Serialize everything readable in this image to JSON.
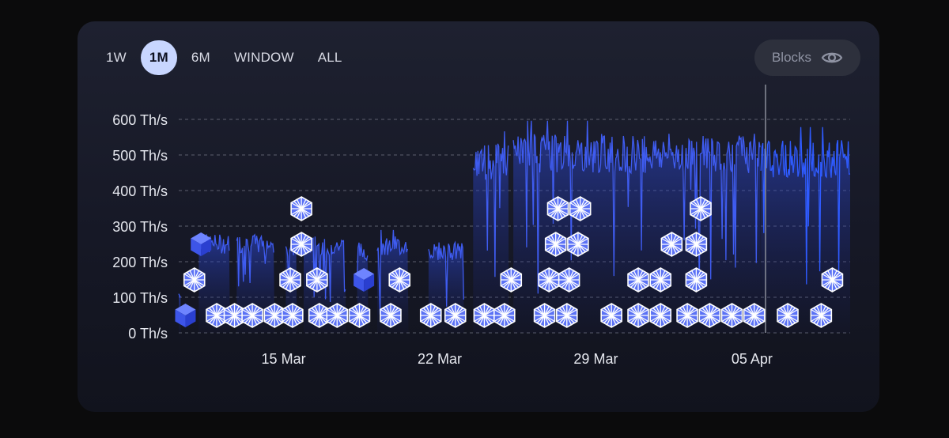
{
  "tabs": [
    {
      "label": "1W",
      "active": false
    },
    {
      "label": "1M",
      "active": true
    },
    {
      "label": "6M",
      "active": false
    },
    {
      "label": "WINDOW",
      "active": false
    },
    {
      "label": "ALL",
      "active": false
    }
  ],
  "blocks_toggle": {
    "label": "Blocks",
    "icon": "eye-icon"
  },
  "colors": {
    "line": "#3f5cf0",
    "line_bright": "#2f5bff",
    "grid": "#7a7d8c",
    "block_light": "#ffffff",
    "block_dark": "#4a64f5"
  },
  "chart_data": {
    "type": "area",
    "unit": "Th/s",
    "y_ticks": [
      "600 Th/s",
      "500 Th/s",
      "400 Th/s",
      "300 Th/s",
      "200 Th/s",
      "100 Th/s",
      "0 Th/s"
    ],
    "y_values": [
      600,
      500,
      400,
      300,
      200,
      100,
      0
    ],
    "ylim": [
      0,
      600
    ],
    "x_ticks": [
      {
        "label": "15 Mar",
        "day": 15
      },
      {
        "label": "22 Mar",
        "day": 22
      },
      {
        "label": "29 Mar",
        "day": 29
      },
      {
        "label": "05 Apr",
        "day": 36
      }
    ],
    "xlim_days": [
      10.3,
      40.4
    ],
    "segments": [
      {
        "from": 10.3,
        "to": 10.4,
        "level": 110
      },
      {
        "from": 11.2,
        "to": 12.6,
        "level": 250
      },
      {
        "from": 12.9,
        "to": 14.6,
        "level": 250
      },
      {
        "from": 15.1,
        "to": 15.6,
        "level": 240
      },
      {
        "from": 15.9,
        "to": 17.8,
        "level": 245
      },
      {
        "from": 18.3,
        "to": 18.8,
        "level": 230
      },
      {
        "from": 19.2,
        "to": 20.6,
        "level": 245
      },
      {
        "from": 21.5,
        "to": 23.1,
        "level": 230
      },
      {
        "from": 23.5,
        "to": 25.1,
        "level": 480
      },
      {
        "from": 25.3,
        "to": 36.4,
        "level": 505
      },
      {
        "from": 36.4,
        "to": 40.4,
        "level": 490
      }
    ],
    "blocks": [
      {
        "day": 10.6,
        "level": 1,
        "style": "cube"
      },
      {
        "day": 11.3,
        "level": 5,
        "style": "cube"
      },
      {
        "day": 11.0,
        "level": 3,
        "style": "star"
      },
      {
        "day": 12.0,
        "level": 1,
        "style": "star"
      },
      {
        "day": 12.8,
        "level": 1,
        "style": "star"
      },
      {
        "day": 13.6,
        "level": 1,
        "style": "star"
      },
      {
        "day": 14.6,
        "level": 1,
        "style": "star"
      },
      {
        "day": 15.4,
        "level": 1,
        "style": "star"
      },
      {
        "day": 15.3,
        "level": 3,
        "style": "star"
      },
      {
        "day": 15.8,
        "level": 5,
        "style": "star"
      },
      {
        "day": 15.8,
        "level": 7,
        "style": "star"
      },
      {
        "day": 16.6,
        "level": 1,
        "style": "star"
      },
      {
        "day": 16.5,
        "level": 3,
        "style": "star"
      },
      {
        "day": 17.4,
        "level": 1,
        "style": "star"
      },
      {
        "day": 18.4,
        "level": 1,
        "style": "star"
      },
      {
        "day": 18.6,
        "level": 3,
        "style": "cube"
      },
      {
        "day": 19.8,
        "level": 1,
        "style": "star"
      },
      {
        "day": 20.2,
        "level": 3,
        "style": "star"
      },
      {
        "day": 21.6,
        "level": 1,
        "style": "star"
      },
      {
        "day": 22.7,
        "level": 1,
        "style": "star"
      },
      {
        "day": 24.0,
        "level": 1,
        "style": "star"
      },
      {
        "day": 24.9,
        "level": 1,
        "style": "star"
      },
      {
        "day": 25.2,
        "level": 3,
        "style": "star"
      },
      {
        "day": 26.7,
        "level": 1,
        "style": "star"
      },
      {
        "day": 26.9,
        "level": 3,
        "style": "star"
      },
      {
        "day": 27.2,
        "level": 5,
        "style": "star"
      },
      {
        "day": 27.3,
        "level": 7,
        "style": "star"
      },
      {
        "day": 27.7,
        "level": 1,
        "style": "star"
      },
      {
        "day": 27.8,
        "level": 3,
        "style": "star"
      },
      {
        "day": 28.2,
        "level": 5,
        "style": "star"
      },
      {
        "day": 28.3,
        "level": 7,
        "style": "star"
      },
      {
        "day": 29.7,
        "level": 1,
        "style": "star"
      },
      {
        "day": 30.9,
        "level": 1,
        "style": "star"
      },
      {
        "day": 30.9,
        "level": 3,
        "style": "star"
      },
      {
        "day": 31.9,
        "level": 1,
        "style": "star"
      },
      {
        "day": 31.9,
        "level": 3,
        "style": "star"
      },
      {
        "day": 32.4,
        "level": 5,
        "style": "star"
      },
      {
        "day": 33.1,
        "level": 1,
        "style": "star"
      },
      {
        "day": 33.5,
        "level": 3,
        "style": "star"
      },
      {
        "day": 33.5,
        "level": 5,
        "style": "star"
      },
      {
        "day": 33.7,
        "level": 7,
        "style": "star"
      },
      {
        "day": 34.1,
        "level": 1,
        "style": "star"
      },
      {
        "day": 35.1,
        "level": 1,
        "style": "star"
      },
      {
        "day": 36.1,
        "level": 1,
        "style": "star"
      },
      {
        "day": 37.6,
        "level": 1,
        "style": "star"
      },
      {
        "day": 39.1,
        "level": 1,
        "style": "star"
      },
      {
        "day": 39.6,
        "level": 3,
        "style": "star"
      }
    ]
  }
}
